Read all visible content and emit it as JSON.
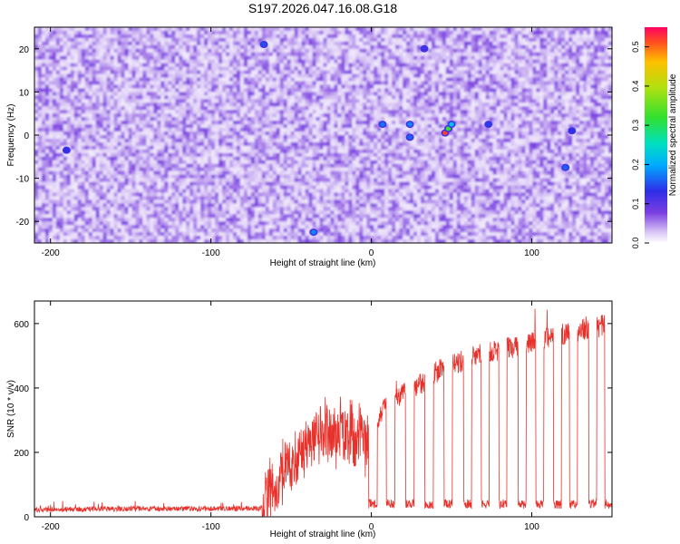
{
  "title": "S197.2026.047.16.08.G18",
  "colors": {
    "snr_line": "#e8312b",
    "axis": "#000000"
  },
  "chart_data": [
    {
      "type": "heatmap",
      "xlabel": "Height of straight line (km)",
      "ylabel": "Frequency (Hz)",
      "xlim": [
        -210,
        150
      ],
      "ylim": [
        -25,
        25
      ],
      "x_ticks": [
        -200,
        -100,
        0,
        100
      ],
      "y_ticks": [
        20,
        10,
        0,
        -10,
        -20
      ],
      "colorbar": {
        "label": "Normalized spectral amplitude",
        "range": [
          0.0,
          0.55
        ],
        "ticks": [
          0.0,
          0.1,
          0.2,
          0.3,
          0.4,
          0.5
        ],
        "tick_labels": [
          "0.0",
          "0.1",
          "0.2",
          "0.3",
          "0.4",
          "0.5"
        ]
      },
      "peaks": [
        {
          "x": 46,
          "y": 0.5,
          "value": 0.52
        },
        {
          "x": 48,
          "y": 1.5,
          "value": 0.32
        },
        {
          "x": 50,
          "y": 2.5,
          "value": 0.22
        },
        {
          "x": 24,
          "y": 2.5,
          "value": 0.18
        },
        {
          "x": 24,
          "y": -0.5,
          "value": 0.16
        },
        {
          "x": 7,
          "y": 2.5,
          "value": 0.17
        },
        {
          "x": 73,
          "y": 2.5,
          "value": 0.14
        },
        {
          "x": 125,
          "y": 1,
          "value": 0.13
        },
        {
          "x": 121,
          "y": -7.5,
          "value": 0.16
        },
        {
          "x": -36,
          "y": -22.5,
          "value": 0.18
        },
        {
          "x": -67,
          "y": 21,
          "value": 0.15
        },
        {
          "x": 33,
          "y": 20,
          "value": 0.12
        },
        {
          "x": -190,
          "y": -3.5,
          "value": 0.13
        }
      ],
      "background_level": [
        0.01,
        0.08
      ]
    },
    {
      "type": "line",
      "xlabel": "Height of straight line (km)",
      "ylabel": "SNR (10 * v/v)",
      "xlim": [
        -210,
        150
      ],
      "ylim": [
        0,
        670
      ],
      "x_ticks": [
        -200,
        -100,
        0,
        100
      ],
      "y_ticks": [
        0,
        200,
        400,
        600
      ],
      "series": [
        {
          "x": [
            -210,
            -150,
            -100,
            -70,
            -65,
            -60,
            -50,
            -40,
            -30,
            -20,
            -10,
            0,
            5,
            10,
            20,
            30,
            40,
            50,
            60,
            70,
            80,
            90,
            100,
            110,
            120,
            130,
            140,
            150
          ],
          "values": [
            22,
            25,
            25,
            26,
            55,
            100,
            160,
            230,
            270,
            260,
            240,
            230,
            300,
            360,
            380,
            410,
            450,
            470,
            490,
            510,
            520,
            530,
            540,
            560,
            570,
            580,
            590,
            600
          ]
        }
      ],
      "dropouts_x": [
        1,
        12,
        24,
        36,
        48,
        60,
        71,
        82,
        94,
        105,
        116,
        126,
        138,
        148
      ],
      "dropout_level": 40
    }
  ]
}
